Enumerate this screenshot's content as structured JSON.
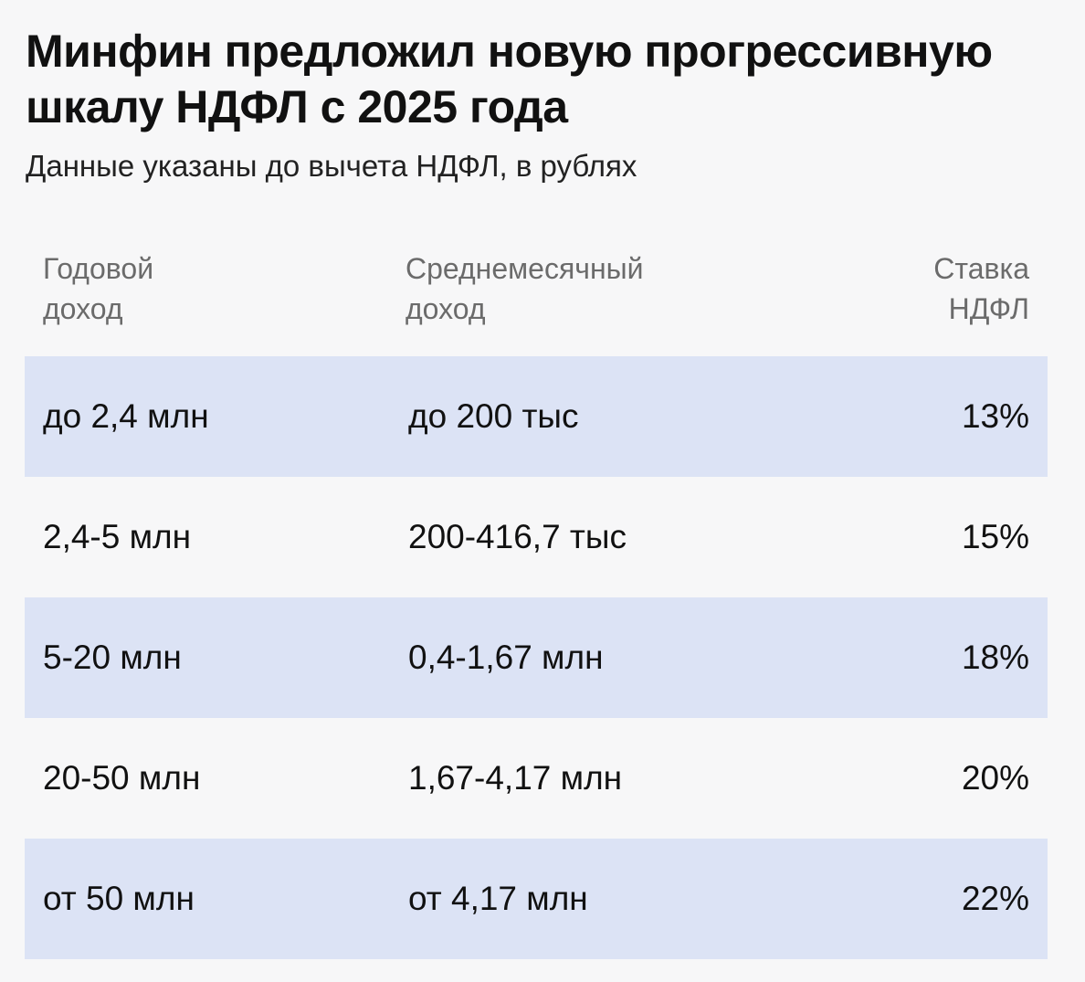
{
  "title": "Минфин предложил новую прогрессивную шкалу НДФЛ с 2025 года",
  "subtitle": "Данные указаны до вычета НДФЛ, в рублях",
  "colors": {
    "background": "#f7f7f8",
    "row_shade": "#dce3f5",
    "text": "#111111",
    "header_text": "#6b6b6b"
  },
  "chart_data": {
    "type": "table",
    "title": "Минфин предложил новую прогрессивную шкалу НДФЛ с 2025 года",
    "subtitle": "Данные указаны до вычета НДФЛ, в рублях",
    "columns": [
      [
        "Годовой",
        "доход"
      ],
      [
        "Среднемесячный",
        "доход"
      ],
      [
        "Ставка",
        "НДФЛ"
      ]
    ],
    "rows": [
      [
        "до 2,4 млн",
        "до 200 тыс",
        "13%"
      ],
      [
        "2,4-5 млн",
        "200-416,7 тыс",
        "15%"
      ],
      [
        "5-20 млн",
        "0,4-1,67 млн",
        "18%"
      ],
      [
        "20-50 млн",
        "1,67-4,17 млн",
        "20%"
      ],
      [
        "от 50 млн",
        "от 4,17 млн",
        "22%"
      ]
    ],
    "rates_percent": [
      13,
      15,
      18,
      20,
      22
    ]
  }
}
